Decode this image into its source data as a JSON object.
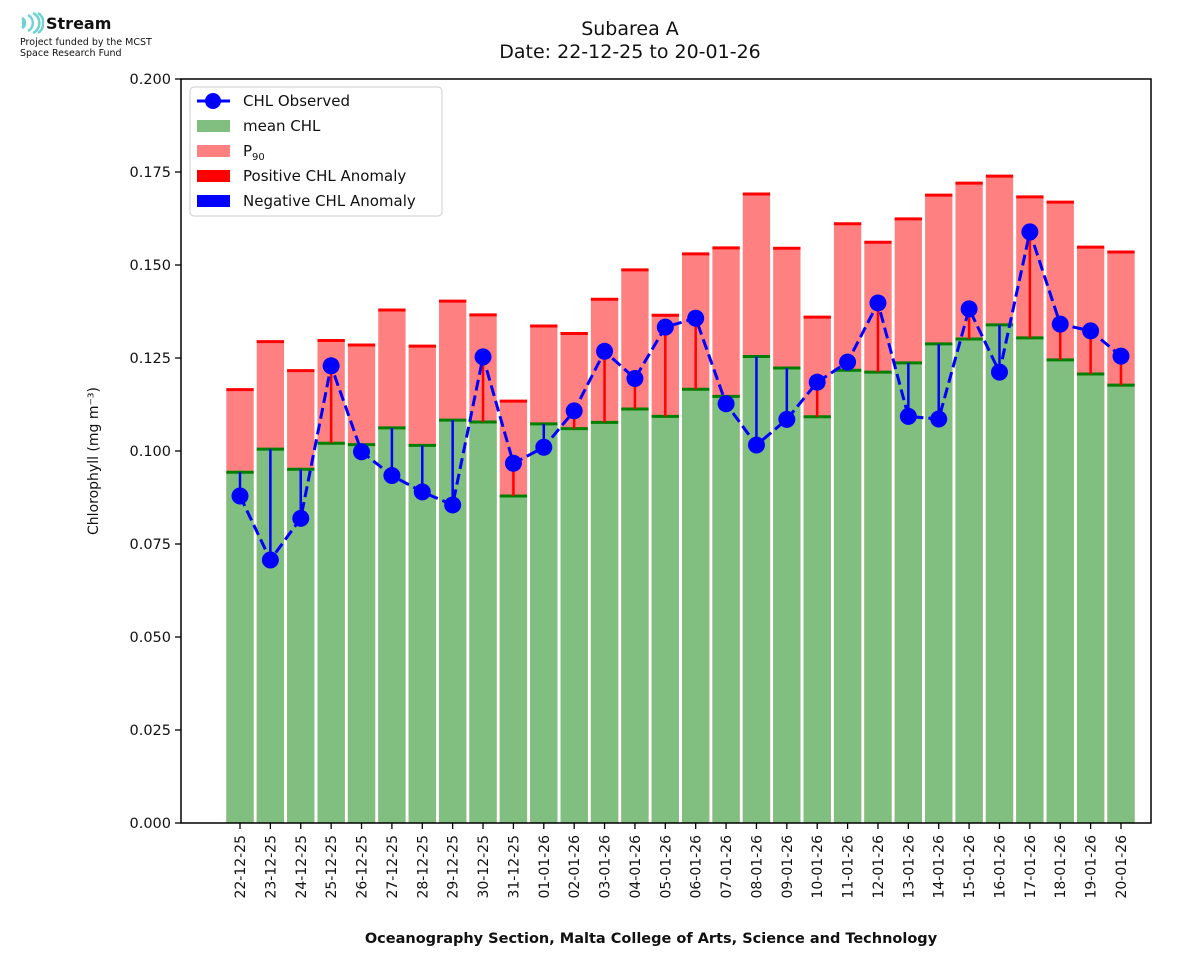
{
  "header": {
    "logo_name": "Stream",
    "logo_line1": "Project funded by the MCST",
    "logo_line2": "Space Research Fund"
  },
  "colors": {
    "mean": "#80bf80",
    "mean_line": "#007f00",
    "p90": "#ff8080",
    "p90_line": "#ff0000",
    "observed": "#0000ff",
    "positive": "#ff0000",
    "negative": "#0000ff"
  },
  "chart_data": {
    "type": "bar",
    "title": "Subarea A",
    "subtitle": "Date: 22-12-25 to 20-01-26",
    "xlabel": "Oceanography Section, Malta College of Arts, Science and Technology",
    "ylabel": "Chlorophyll (mg m⁻³)",
    "ylim": [
      0,
      0.2
    ],
    "yticks": [
      "0.000",
      "0.025",
      "0.050",
      "0.075",
      "0.100",
      "0.125",
      "0.150",
      "0.175",
      "0.200"
    ],
    "grid": false,
    "legend_position": "top-left",
    "legend": [
      "CHL Observed",
      "mean CHL",
      "P90",
      "Positive CHL Anomaly",
      "Negative CHL Anomaly"
    ],
    "categories": [
      "22-12-25",
      "23-12-25",
      "24-12-25",
      "25-12-25",
      "26-12-25",
      "27-12-25",
      "28-12-25",
      "29-12-25",
      "30-12-25",
      "31-12-25",
      "01-01-26",
      "02-01-26",
      "03-01-26",
      "04-01-26",
      "05-01-26",
      "06-01-26",
      "07-01-26",
      "08-01-26",
      "09-01-26",
      "10-01-26",
      "11-01-26",
      "12-01-26",
      "13-01-26",
      "14-01-26",
      "15-01-26",
      "16-01-26",
      "17-01-26",
      "18-01-26",
      "19-01-26",
      "20-01-26"
    ],
    "series": [
      {
        "name": "P90",
        "type": "bar",
        "values": [
          0.1165,
          0.1294,
          0.1216,
          0.1297,
          0.1285,
          0.1379,
          0.1282,
          0.1403,
          0.1366,
          0.1134,
          0.1336,
          0.1316,
          0.1408,
          0.1487,
          0.1365,
          0.153,
          0.1546,
          0.1691,
          0.1545,
          0.136,
          0.1611,
          0.1561,
          0.1624,
          0.1688,
          0.172,
          0.1739,
          0.1683,
          0.1669,
          0.1548,
          0.1535
        ]
      },
      {
        "name": "mean CHL",
        "type": "bar",
        "values": [
          0.0943,
          0.1005,
          0.0951,
          0.1021,
          0.1017,
          0.1062,
          0.1015,
          0.1083,
          0.1078,
          0.0879,
          0.1073,
          0.106,
          0.1077,
          0.1113,
          0.1093,
          0.1166,
          0.1147,
          0.1254,
          0.1223,
          0.1092,
          0.1217,
          0.1212,
          0.1237,
          0.1288,
          0.1301,
          0.1339,
          0.1304,
          0.1245,
          0.1207,
          0.1177
        ]
      },
      {
        "name": "CHL Observed",
        "type": "line",
        "values": [
          0.0879,
          0.0707,
          0.0819,
          0.1229,
          0.0998,
          0.0934,
          0.089,
          0.0855,
          0.1253,
          0.0967,
          0.101,
          0.1108,
          0.1268,
          0.1195,
          0.1333,
          0.1357,
          0.1127,
          0.1016,
          0.1085,
          0.1185,
          0.1239,
          0.1398,
          0.1093,
          0.1086,
          0.1382,
          0.1212,
          0.1589,
          0.1341,
          0.1323,
          0.1255
        ]
      }
    ]
  }
}
